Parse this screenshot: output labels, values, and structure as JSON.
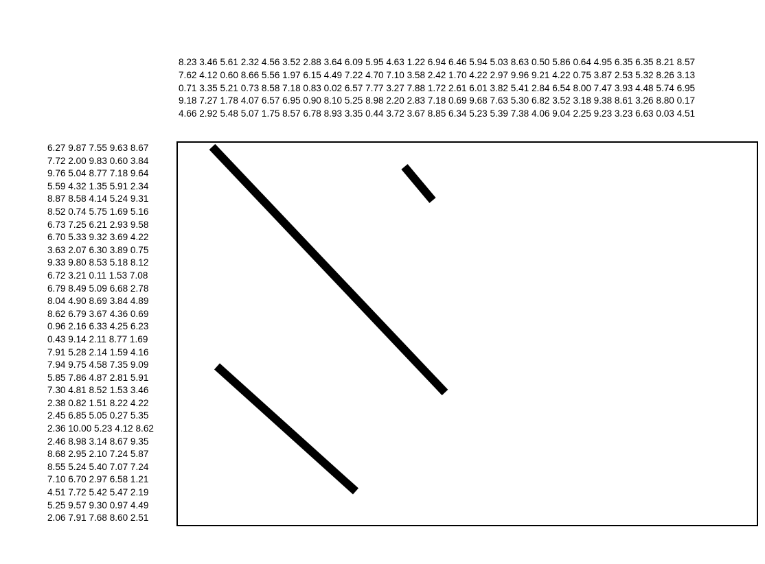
{
  "column_clues": [
    "8.23 3.46 5.61 2.32 4.56 3.52 2.88 3.64 6.09 5.95 4.63 1.22 6.94 6.46 5.94 5.03 8.63 0.50 5.86 0.64 4.95 6.35 6.35 8.21 8.57",
    "7.62 4.12 0.60 8.66 5.56 1.97 6.15 4.49 7.22 4.70 7.10 3.58 2.42 1.70 4.22 2.97 9.96 9.21 4.22 0.75 3.87 2.53 5.32 8.26 3.13",
    "0.71 3.35 5.21 0.73 8.58 7.18 0.83 0.02 6.57 7.77 3.27 7.88 1.72 2.61 6.01 3.82 5.41 2.84 6.54 8.00 7.47 3.93 4.48 5.74 6.95",
    "9.18 7.27 1.78 4.07 6.57 6.95 0.90 8.10 5.25 8.98 2.20 2.83 7.18 0.69 9.68 7.63 5.30 6.82 3.52 3.18 9.38 8.61 3.26 8.80 0.17",
    "4.66 2.92 5.48 5.07 1.75 8.57 6.78 8.93 3.35 0.44 3.72 3.67 8.85 6.34 5.23 5.39 7.38 4.06 9.04 2.25 9.23 3.23 6.63 0.03 4.51"
  ],
  "row_clues": [
    "6.27 9.87 7.55 9.63 8.67",
    "7.72 2.00 9.83 0.60 3.84",
    "9.76 5.04 8.77 7.18 9.64",
    "5.59 4.32 1.35 5.91 2.34",
    "8.87 8.58 4.14 5.24 9.31",
    "8.52 0.74 5.75 1.69 5.16",
    "6.73 7.25 6.21 2.93 9.58",
    "6.70 5.33 9.32 3.69 4.22",
    "3.63 2.07 6.30 3.89 0.75",
    "9.33 9.80 8.53 5.18 8.12",
    "6.72 3.21 0.11 1.53 7.08",
    "6.79 8.49 5.09 6.68 2.78",
    "8.04 4.90 8.69 3.84 4.89",
    "8.62 6.79 3.67 4.36 0.69",
    "0.96 2.16 6.33 4.25 6.23",
    "0.43 9.14 2.11 8.77 1.69",
    "7.91 5.28 2.14 1.59 4.16",
    "7.94 9.75 4.58 7.35 9.09",
    "5.85 7.86 4.87 2.81 5.91",
    "7.30 4.81 8.52 1.53 3.46",
    "2.38 0.82 1.51 8.22 4.22",
    "2.45 6.85 5.05 0.27 5.35",
    "2.36 10.00 5.23 4.12 8.62",
    "2.46 8.98 3.14 8.67 9.35",
    "8.68 2.95 2.10 7.24 5.87",
    "8.55 5.24 5.40 7.07 7.24",
    "7.10 6.70 2.97 6.58 1.21",
    "4.51 7.72 5.42 5.47 2.19",
    "5.25 9.57 9.30 0.97 4.49",
    "2.06 7.91 7.68 8.60 2.51"
  ],
  "colors": {
    "ink": "#000000",
    "background": "#ffffff"
  }
}
